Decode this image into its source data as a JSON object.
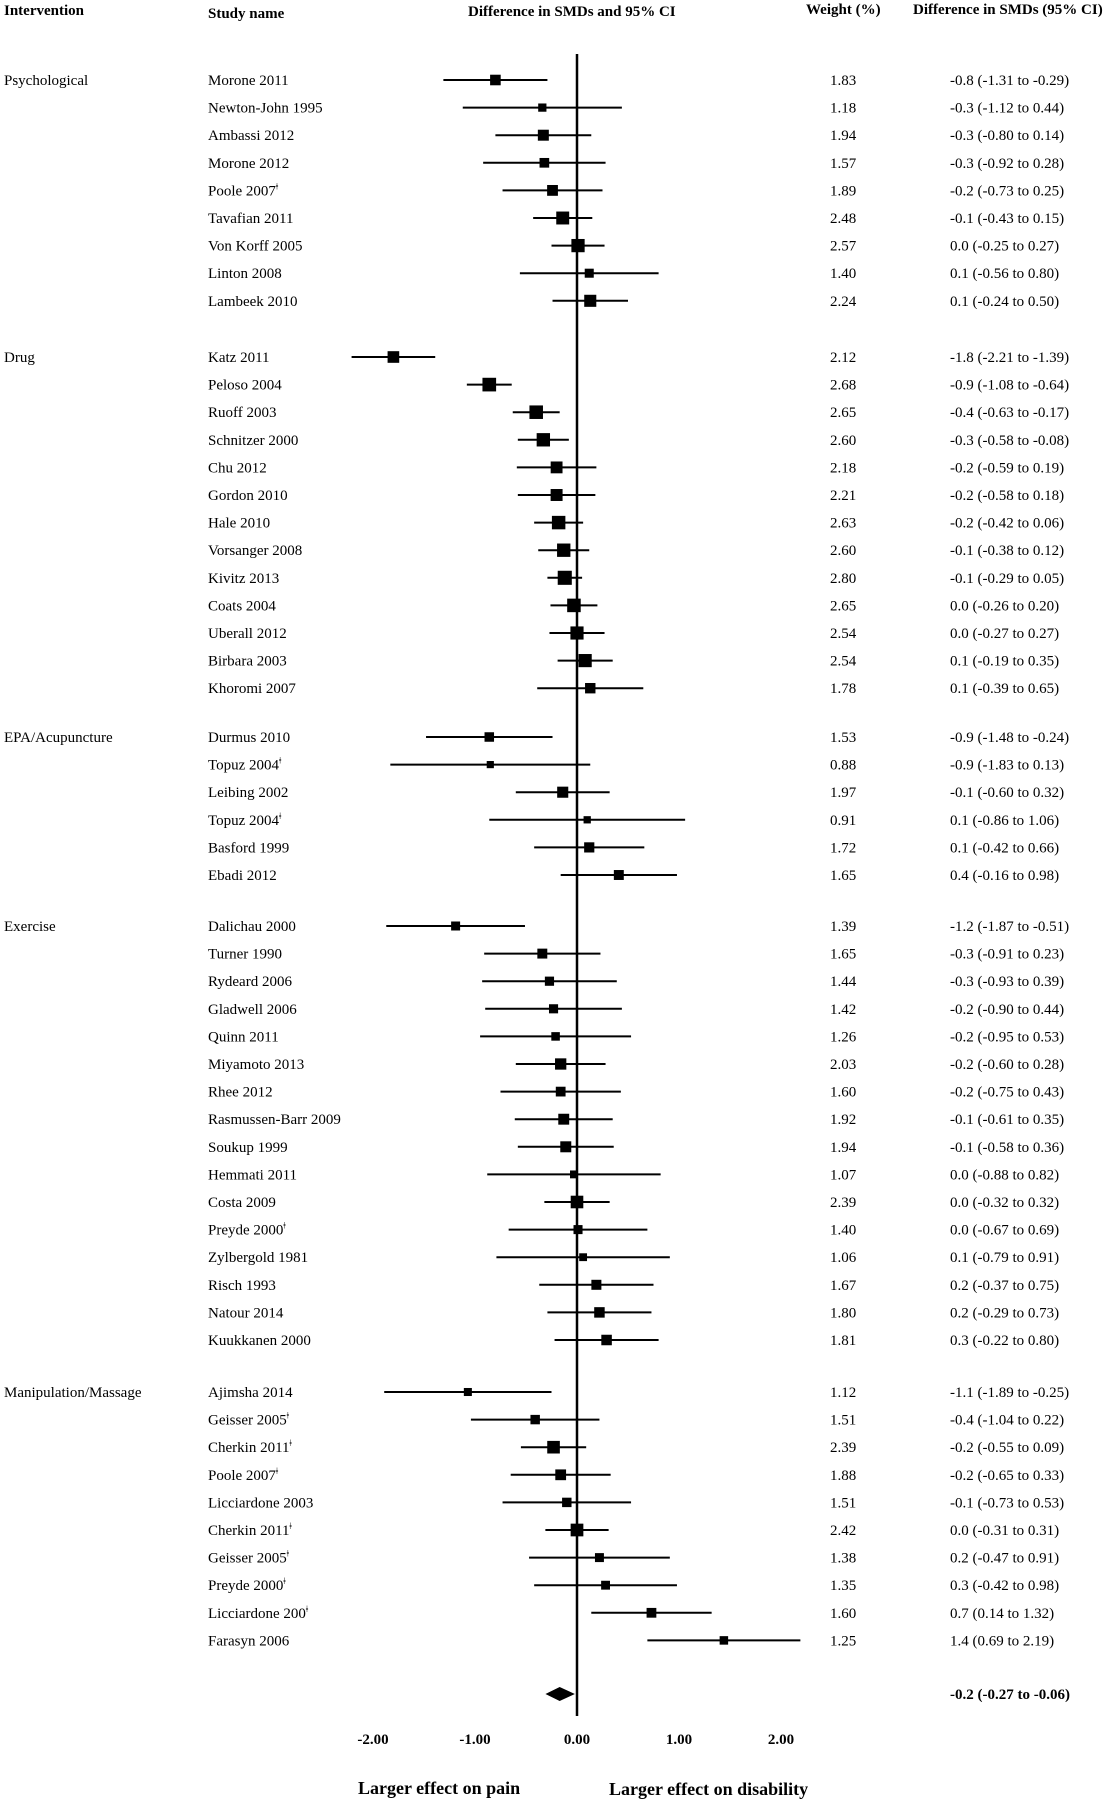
{
  "headers": {
    "intervention": "Intervention",
    "study": "Study name",
    "ci": "Difference in SMDs and 95% CI",
    "weight": "Weight (%)",
    "effect": "Difference in SMDs (95% CI)"
  },
  "footer": {
    "left": "Larger effect on pain",
    "right": "Larger effect on disability"
  },
  "chart_data": {
    "type": "forest",
    "xlim": [
      -2,
      2
    ],
    "ticks": [
      {
        "value": -2,
        "label": "-2.00"
      },
      {
        "value": -1,
        "label": "-1.00"
      },
      {
        "value": 0,
        "label": "0.00"
      },
      {
        "value": 1,
        "label": "1.00"
      },
      {
        "value": 2,
        "label": "2.00"
      }
    ],
    "groups": [
      {
        "name": "Psychological",
        "rows": [
          {
            "study": "Morone 2011",
            "sup": "",
            "est": -0.8,
            "lo": -1.31,
            "hi": -0.29,
            "weight": "1.83",
            "label": "-0.8 (-1.31 to -0.29)"
          },
          {
            "study": "Newton-John 1995",
            "sup": "",
            "est": -0.34,
            "lo": -1.12,
            "hi": 0.44,
            "weight": "1.18",
            "label": "-0.3 (-1.12 to 0.44)"
          },
          {
            "study": "Ambassi 2012",
            "sup": "",
            "est": -0.33,
            "lo": -0.8,
            "hi": 0.14,
            "weight": "1.94",
            "label": "-0.3 (-0.80 to 0.14)"
          },
          {
            "study": "Morone 2012",
            "sup": "",
            "est": -0.32,
            "lo": -0.92,
            "hi": 0.28,
            "weight": "1.57",
            "label": "-0.3 (-0.92 to 0.28)"
          },
          {
            "study": "Poole 2007",
            "sup": "ǂ",
            "est": -0.24,
            "lo": -0.73,
            "hi": 0.25,
            "weight": "1.89",
            "label": "-0.2 (-0.73 to 0.25)"
          },
          {
            "study": "Tavafian 2011",
            "sup": "",
            "est": -0.14,
            "lo": -0.43,
            "hi": 0.15,
            "weight": "2.48",
            "label": "-0.1 (-0.43 to 0.15)"
          },
          {
            "study": "Von Korff 2005",
            "sup": "",
            "est": 0.01,
            "lo": -0.25,
            "hi": 0.27,
            "weight": "2.57",
            "label": "0.0 (-0.25 to 0.27)"
          },
          {
            "study": "Linton 2008",
            "sup": "",
            "est": 0.12,
            "lo": -0.56,
            "hi": 0.8,
            "weight": "1.40",
            "label": "0.1 (-0.56 to 0.80)"
          },
          {
            "study": "Lambeek 2010",
            "sup": "",
            "est": 0.13,
            "lo": -0.24,
            "hi": 0.5,
            "weight": "2.24",
            "label": "0.1 (-0.24 to 0.50)"
          }
        ]
      },
      {
        "name": "Drug",
        "rows": [
          {
            "study": "Katz 2011",
            "sup": "",
            "est": -1.8,
            "lo": -2.21,
            "hi": -1.39,
            "weight": "2.12",
            "label": "-1.8 (-2.21 to -1.39)"
          },
          {
            "study": "Peloso 2004",
            "sup": "",
            "est": -0.86,
            "lo": -1.08,
            "hi": -0.64,
            "weight": "2.68",
            "label": "-0.9 (-1.08 to -0.64)"
          },
          {
            "study": "Ruoff 2003",
            "sup": "",
            "est": -0.4,
            "lo": -0.63,
            "hi": -0.17,
            "weight": "2.65",
            "label": "-0.4 (-0.63 to -0.17)"
          },
          {
            "study": "Schnitzer 2000",
            "sup": "",
            "est": -0.33,
            "lo": -0.58,
            "hi": -0.08,
            "weight": "2.60",
            "label": "-0.3 (-0.58 to -0.08)"
          },
          {
            "study": "Chu 2012",
            "sup": "",
            "est": -0.2,
            "lo": -0.59,
            "hi": 0.19,
            "weight": "2.18",
            "label": "-0.2 (-0.59 to 0.19)"
          },
          {
            "study": "Gordon 2010",
            "sup": "",
            "est": -0.2,
            "lo": -0.58,
            "hi": 0.18,
            "weight": "2.21",
            "label": "-0.2 (-0.58 to 0.18)"
          },
          {
            "study": "Hale 2010",
            "sup": "",
            "est": -0.18,
            "lo": -0.42,
            "hi": 0.06,
            "weight": "2.63",
            "label": "-0.2 (-0.42 to 0.06)"
          },
          {
            "study": "Vorsanger 2008",
            "sup": "",
            "est": -0.13,
            "lo": -0.38,
            "hi": 0.12,
            "weight": "2.60",
            "label": "-0.1 (-0.38 to 0.12)"
          },
          {
            "study": "Kivitz 2013",
            "sup": "",
            "est": -0.12,
            "lo": -0.29,
            "hi": 0.05,
            "weight": "2.80",
            "label": "-0.1 (-0.29 to 0.05)"
          },
          {
            "study": "Coats 2004",
            "sup": "",
            "est": -0.03,
            "lo": -0.26,
            "hi": 0.2,
            "weight": "2.65",
            "label": "0.0 (-0.26 to 0.20)"
          },
          {
            "study": "Uberall 2012",
            "sup": "",
            "est": 0.0,
            "lo": -0.27,
            "hi": 0.27,
            "weight": "2.54",
            "label": "0.0 (-0.27 to 0.27)"
          },
          {
            "study": "Birbara 2003",
            "sup": "",
            "est": 0.08,
            "lo": -0.19,
            "hi": 0.35,
            "weight": "2.54",
            "label": "0.1 (-0.19 to 0.35)"
          },
          {
            "study": "Khoromi 2007",
            "sup": "",
            "est": 0.13,
            "lo": -0.39,
            "hi": 0.65,
            "weight": "1.78",
            "label": "0.1 (-0.39 to 0.65)"
          }
        ]
      },
      {
        "name": "EPA/Acupuncture",
        "rows": [
          {
            "study": "Durmus 2010",
            "sup": "",
            "est": -0.86,
            "lo": -1.48,
            "hi": -0.24,
            "weight": "1.53",
            "label": "-0.9 (-1.48 to -0.24)"
          },
          {
            "study": "Topuz 2004",
            "sup": "ǂ",
            "est": -0.85,
            "lo": -1.83,
            "hi": 0.13,
            "weight": "0.88",
            "label": "-0.9 (-1.83 to 0.13)"
          },
          {
            "study": "Leibing 2002",
            "sup": "",
            "est": -0.14,
            "lo": -0.6,
            "hi": 0.32,
            "weight": "1.97",
            "label": "-0.1 (-0.60 to 0.32)"
          },
          {
            "study": "Topuz 2004",
            "sup": "ǂ",
            "est": 0.1,
            "lo": -0.86,
            "hi": 1.06,
            "weight": "0.91",
            "label": "0.1 (-0.86 to 1.06)"
          },
          {
            "study": "Basford 1999",
            "sup": "",
            "est": 0.12,
            "lo": -0.42,
            "hi": 0.66,
            "weight": "1.72",
            "label": "0.1 (-0.42 to 0.66)"
          },
          {
            "study": "Ebadi 2012",
            "sup": "",
            "est": 0.41,
            "lo": -0.16,
            "hi": 0.98,
            "weight": "1.65",
            "label": "0.4 (-0.16 to 0.98)"
          }
        ]
      },
      {
        "name": "Exercise",
        "rows": [
          {
            "study": "Dalichau 2000",
            "sup": "",
            "est": -1.19,
            "lo": -1.87,
            "hi": -0.51,
            "weight": "1.39",
            "label": "-1.2 (-1.87 to -0.51)"
          },
          {
            "study": "Turner 1990",
            "sup": "",
            "est": -0.34,
            "lo": -0.91,
            "hi": 0.23,
            "weight": "1.65",
            "label": "-0.3 (-0.91 to 0.23)"
          },
          {
            "study": "Rydeard 2006",
            "sup": "",
            "est": -0.27,
            "lo": -0.93,
            "hi": 0.39,
            "weight": "1.44",
            "label": "-0.3 (-0.93 to 0.39)"
          },
          {
            "study": "Gladwell 2006",
            "sup": "",
            "est": -0.23,
            "lo": -0.9,
            "hi": 0.44,
            "weight": "1.42",
            "label": "-0.2 (-0.90 to 0.44)"
          },
          {
            "study": "Quinn 2011",
            "sup": "",
            "est": -0.21,
            "lo": -0.95,
            "hi": 0.53,
            "weight": "1.26",
            "label": "-0.2 (-0.95 to 0.53)"
          },
          {
            "study": "Miyamoto 2013",
            "sup": "",
            "est": -0.16,
            "lo": -0.6,
            "hi": 0.28,
            "weight": "2.03",
            "label": "-0.2 (-0.60 to 0.28)"
          },
          {
            "study": "Rhee 2012",
            "sup": "",
            "est": -0.16,
            "lo": -0.75,
            "hi": 0.43,
            "weight": "1.60",
            "label": "-0.2 (-0.75 to 0.43)"
          },
          {
            "study": "Rasmussen-Barr 2009",
            "sup": "",
            "est": -0.13,
            "lo": -0.61,
            "hi": 0.35,
            "weight": "1.92",
            "label": "-0.1 (-0.61 to 0.35)"
          },
          {
            "study": "Soukup 1999",
            "sup": "",
            "est": -0.11,
            "lo": -0.58,
            "hi": 0.36,
            "weight": "1.94",
            "label": "-0.1 (-0.58 to 0.36)"
          },
          {
            "study": "Hemmati 2011",
            "sup": "",
            "est": -0.03,
            "lo": -0.88,
            "hi": 0.82,
            "weight": "1.07",
            "label": "0.0 (-0.88 to 0.82)"
          },
          {
            "study": "Costa 2009",
            "sup": "",
            "est": 0.0,
            "lo": -0.32,
            "hi": 0.32,
            "weight": "2.39",
            "label": "0.0 (-0.32 to 0.32)"
          },
          {
            "study": "Preyde 2000",
            "sup": "ǂ",
            "est": 0.01,
            "lo": -0.67,
            "hi": 0.69,
            "weight": "1.40",
            "label": "0.0 (-0.67 to 0.69)"
          },
          {
            "study": "Zylbergold 1981",
            "sup": "",
            "est": 0.06,
            "lo": -0.79,
            "hi": 0.91,
            "weight": "1.06",
            "label": "0.1 (-0.79 to 0.91)"
          },
          {
            "study": "Risch 1993",
            "sup": "",
            "est": 0.19,
            "lo": -0.37,
            "hi": 0.75,
            "weight": "1.67",
            "label": "0.2 (-0.37 to 0.75)"
          },
          {
            "study": "Natour 2014",
            "sup": "",
            "est": 0.22,
            "lo": -0.29,
            "hi": 0.73,
            "weight": "1.80",
            "label": "0.2 (-0.29 to 0.73)"
          },
          {
            "study": "Kuukkanen 2000",
            "sup": "",
            "est": 0.29,
            "lo": -0.22,
            "hi": 0.8,
            "weight": "1.81",
            "label": "0.3 (-0.22 to 0.80)"
          }
        ]
      },
      {
        "name": "Manipulation/Massage",
        "rows": [
          {
            "study": "Ajimsha 2014",
            "sup": "",
            "est": -1.07,
            "lo": -1.89,
            "hi": -0.25,
            "weight": "1.12",
            "label": "-1.1 (-1.89 to -0.25)"
          },
          {
            "study": "Geisser 2005",
            "sup": "ǂ",
            "est": -0.41,
            "lo": -1.04,
            "hi": 0.22,
            "weight": "1.51",
            "label": "-0.4 (-1.04 to 0.22)"
          },
          {
            "study": "Cherkin 2011",
            "sup": "ǂ",
            "est": -0.23,
            "lo": -0.55,
            "hi": 0.09,
            "weight": "2.39",
            "label": "-0.2 (-0.55 to 0.09)"
          },
          {
            "study": "Poole 2007",
            "sup": "ǂ",
            "est": -0.16,
            "lo": -0.65,
            "hi": 0.33,
            "weight": "1.88",
            "label": "-0.2 (-0.65 to 0.33)"
          },
          {
            "study": "Licciardone 2003",
            "sup": "",
            "est": -0.1,
            "lo": -0.73,
            "hi": 0.53,
            "weight": "1.51",
            "label": "-0.1 (-0.73 to 0.53)"
          },
          {
            "study": "Cherkin 2011",
            "sup": "ǂ",
            "est": 0.0,
            "lo": -0.31,
            "hi": 0.31,
            "weight": "2.42",
            "label": "0.0 (-0.31 to 0.31)"
          },
          {
            "study": "Geisser 2005",
            "sup": "ǂ",
            "est": 0.22,
            "lo": -0.47,
            "hi": 0.91,
            "weight": "1.38",
            "label": "0.2 (-0.47 to 0.91)"
          },
          {
            "study": "Preyde 2000",
            "sup": "ǂ",
            "est": 0.28,
            "lo": -0.42,
            "hi": 0.98,
            "weight": "1.35",
            "label": "0.3 (-0.42 to 0.98)"
          },
          {
            "study": "Licciardone 200",
            "sup": "ǂ",
            "est": 0.73,
            "lo": 0.14,
            "hi": 1.32,
            "weight": "1.60",
            "label": "0.7 (0.14 to 1.32)"
          },
          {
            "study": "Farasyn 2006",
            "sup": "",
            "est": 1.44,
            "lo": 0.69,
            "hi": 2.19,
            "weight": "1.25",
            "label": "1.4 (0.69 to 2.19)"
          }
        ]
      }
    ],
    "overall": {
      "est": -0.17,
      "lo": -0.27,
      "hi": -0.06,
      "label": "-0.2 (-0.27 to -0.06)"
    }
  }
}
